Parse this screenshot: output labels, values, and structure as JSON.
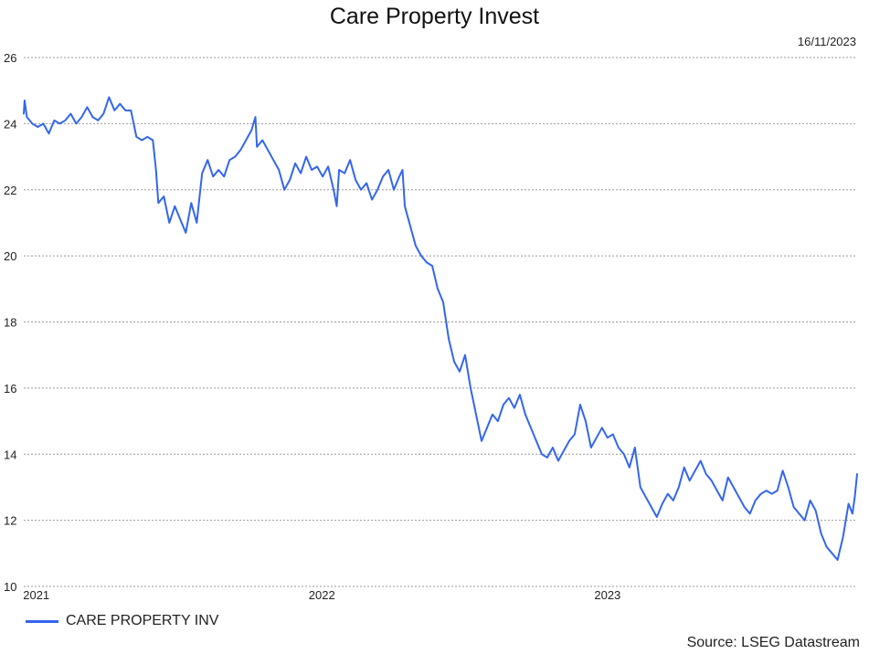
{
  "chart_data": {
    "type": "line",
    "title": "Care Property Invest",
    "date_label": "16/11/2023",
    "source": "Source: LSEG Datastream",
    "xlabel": "",
    "ylabel": "",
    "ylim": [
      10,
      26
    ],
    "y_ticks": [
      10,
      12,
      14,
      16,
      18,
      20,
      22,
      24,
      26
    ],
    "x_ticks": [
      {
        "label": "2021",
        "date": "2021-01-01"
      },
      {
        "label": "2022",
        "date": "2022-01-01"
      },
      {
        "label": "2023",
        "date": "2023-01-01"
      }
    ],
    "x_range": [
      "2020-12-16",
      "2023-11-16"
    ],
    "grid": "horizontal-dotted",
    "legend_position": "bottom-left",
    "colors": {
      "series": "#3366ee",
      "grid": "#999999"
    },
    "series": [
      {
        "name": "CARE PROPERTY INV",
        "points": [
          [
            "2020-12-16",
            24.3
          ],
          [
            "2020-12-17",
            24.7
          ],
          [
            "2020-12-20",
            24.2
          ],
          [
            "2020-12-27",
            24.0
          ],
          [
            "2021-01-03",
            23.9
          ],
          [
            "2021-01-10",
            24.0
          ],
          [
            "2021-01-17",
            23.7
          ],
          [
            "2021-01-24",
            24.1
          ],
          [
            "2021-01-31",
            24.0
          ],
          [
            "2021-02-07",
            24.1
          ],
          [
            "2021-02-14",
            24.3
          ],
          [
            "2021-02-21",
            24.0
          ],
          [
            "2021-02-28",
            24.2
          ],
          [
            "2021-03-07",
            24.5
          ],
          [
            "2021-03-14",
            24.2
          ],
          [
            "2021-03-21",
            24.1
          ],
          [
            "2021-03-28",
            24.3
          ],
          [
            "2021-04-04",
            24.8
          ],
          [
            "2021-04-11",
            24.4
          ],
          [
            "2021-04-18",
            24.6
          ],
          [
            "2021-04-25",
            24.4
          ],
          [
            "2021-05-02",
            24.4
          ],
          [
            "2021-05-09",
            23.6
          ],
          [
            "2021-05-16",
            23.5
          ],
          [
            "2021-05-23",
            23.6
          ],
          [
            "2021-05-30",
            23.5
          ],
          [
            "2021-06-03",
            22.6
          ],
          [
            "2021-06-06",
            21.6
          ],
          [
            "2021-06-13",
            21.8
          ],
          [
            "2021-06-20",
            21.0
          ],
          [
            "2021-06-27",
            21.5
          ],
          [
            "2021-07-04",
            21.1
          ],
          [
            "2021-07-11",
            20.7
          ],
          [
            "2021-07-18",
            21.6
          ],
          [
            "2021-07-25",
            21.0
          ],
          [
            "2021-08-01",
            22.5
          ],
          [
            "2021-08-08",
            22.9
          ],
          [
            "2021-08-15",
            22.4
          ],
          [
            "2021-08-22",
            22.6
          ],
          [
            "2021-08-29",
            22.4
          ],
          [
            "2021-09-05",
            22.9
          ],
          [
            "2021-09-12",
            23.0
          ],
          [
            "2021-09-19",
            23.2
          ],
          [
            "2021-09-26",
            23.5
          ],
          [
            "2021-10-03",
            23.8
          ],
          [
            "2021-10-08",
            24.2
          ],
          [
            "2021-10-10",
            23.3
          ],
          [
            "2021-10-17",
            23.5
          ],
          [
            "2021-10-24",
            23.2
          ],
          [
            "2021-10-31",
            22.9
          ],
          [
            "2021-11-07",
            22.6
          ],
          [
            "2021-11-14",
            22.0
          ],
          [
            "2021-11-21",
            22.3
          ],
          [
            "2021-11-28",
            22.8
          ],
          [
            "2021-12-05",
            22.5
          ],
          [
            "2021-12-12",
            23.0
          ],
          [
            "2021-12-19",
            22.6
          ],
          [
            "2021-12-26",
            22.7
          ],
          [
            "2022-01-02",
            22.4
          ],
          [
            "2022-01-09",
            22.7
          ],
          [
            "2022-01-16",
            22.0
          ],
          [
            "2022-01-20",
            21.5
          ],
          [
            "2022-01-23",
            22.6
          ],
          [
            "2022-01-30",
            22.5
          ],
          [
            "2022-02-06",
            22.9
          ],
          [
            "2022-02-13",
            22.3
          ],
          [
            "2022-02-20",
            22.0
          ],
          [
            "2022-02-27",
            22.2
          ],
          [
            "2022-03-06",
            21.7
          ],
          [
            "2022-03-13",
            22.0
          ],
          [
            "2022-03-20",
            22.4
          ],
          [
            "2022-03-27",
            22.6
          ],
          [
            "2022-04-03",
            22.0
          ],
          [
            "2022-04-10",
            22.4
          ],
          [
            "2022-04-14",
            22.6
          ],
          [
            "2022-04-17",
            21.5
          ],
          [
            "2022-04-24",
            20.9
          ],
          [
            "2022-05-01",
            20.3
          ],
          [
            "2022-05-08",
            20.0
          ],
          [
            "2022-05-15",
            19.8
          ],
          [
            "2022-05-22",
            19.7
          ],
          [
            "2022-05-29",
            19.0
          ],
          [
            "2022-06-05",
            18.6
          ],
          [
            "2022-06-12",
            17.5
          ],
          [
            "2022-06-19",
            16.8
          ],
          [
            "2022-06-26",
            16.5
          ],
          [
            "2022-07-03",
            17.0
          ],
          [
            "2022-07-10",
            16.0
          ],
          [
            "2022-07-17",
            15.2
          ],
          [
            "2022-07-24",
            14.4
          ],
          [
            "2022-07-31",
            14.8
          ],
          [
            "2022-08-07",
            15.2
          ],
          [
            "2022-08-14",
            15.0
          ],
          [
            "2022-08-21",
            15.5
          ],
          [
            "2022-08-28",
            15.7
          ],
          [
            "2022-09-04",
            15.4
          ],
          [
            "2022-09-11",
            15.8
          ],
          [
            "2022-09-18",
            15.2
          ],
          [
            "2022-09-25",
            14.8
          ],
          [
            "2022-10-02",
            14.4
          ],
          [
            "2022-10-09",
            14.0
          ],
          [
            "2022-10-16",
            13.9
          ],
          [
            "2022-10-23",
            14.2
          ],
          [
            "2022-10-30",
            13.8
          ],
          [
            "2022-11-06",
            14.1
          ],
          [
            "2022-11-13",
            14.4
          ],
          [
            "2022-11-20",
            14.6
          ],
          [
            "2022-11-27",
            15.5
          ],
          [
            "2022-12-04",
            15.0
          ],
          [
            "2022-12-11",
            14.2
          ],
          [
            "2022-12-18",
            14.5
          ],
          [
            "2022-12-25",
            14.8
          ],
          [
            "2023-01-01",
            14.5
          ],
          [
            "2023-01-08",
            14.6
          ],
          [
            "2023-01-15",
            14.2
          ],
          [
            "2023-01-22",
            14.0
          ],
          [
            "2023-01-29",
            13.6
          ],
          [
            "2023-02-05",
            14.2
          ],
          [
            "2023-02-12",
            13.0
          ],
          [
            "2023-02-19",
            12.7
          ],
          [
            "2023-02-26",
            12.4
          ],
          [
            "2023-03-05",
            12.1
          ],
          [
            "2023-03-12",
            12.5
          ],
          [
            "2023-03-19",
            12.8
          ],
          [
            "2023-03-26",
            12.6
          ],
          [
            "2023-04-02",
            13.0
          ],
          [
            "2023-04-09",
            13.6
          ],
          [
            "2023-04-16",
            13.2
          ],
          [
            "2023-04-23",
            13.5
          ],
          [
            "2023-04-30",
            13.8
          ],
          [
            "2023-05-07",
            13.4
          ],
          [
            "2023-05-14",
            13.2
          ],
          [
            "2023-05-21",
            12.9
          ],
          [
            "2023-05-28",
            12.6
          ],
          [
            "2023-06-04",
            13.3
          ],
          [
            "2023-06-11",
            13.0
          ],
          [
            "2023-06-18",
            12.7
          ],
          [
            "2023-06-25",
            12.4
          ],
          [
            "2023-07-02",
            12.2
          ],
          [
            "2023-07-09",
            12.6
          ],
          [
            "2023-07-16",
            12.8
          ],
          [
            "2023-07-23",
            12.9
          ],
          [
            "2023-07-30",
            12.8
          ],
          [
            "2023-08-06",
            12.9
          ],
          [
            "2023-08-13",
            13.5
          ],
          [
            "2023-08-20",
            13.0
          ],
          [
            "2023-08-27",
            12.4
          ],
          [
            "2023-09-03",
            12.2
          ],
          [
            "2023-09-10",
            12.0
          ],
          [
            "2023-09-17",
            12.6
          ],
          [
            "2023-09-24",
            12.3
          ],
          [
            "2023-10-01",
            11.6
          ],
          [
            "2023-10-08",
            11.2
          ],
          [
            "2023-10-15",
            11.0
          ],
          [
            "2023-10-22",
            10.8
          ],
          [
            "2023-10-29",
            11.5
          ],
          [
            "2023-11-05",
            12.5
          ],
          [
            "2023-11-10",
            12.2
          ],
          [
            "2023-11-13",
            12.7
          ],
          [
            "2023-11-16",
            13.4
          ]
        ]
      }
    ]
  }
}
